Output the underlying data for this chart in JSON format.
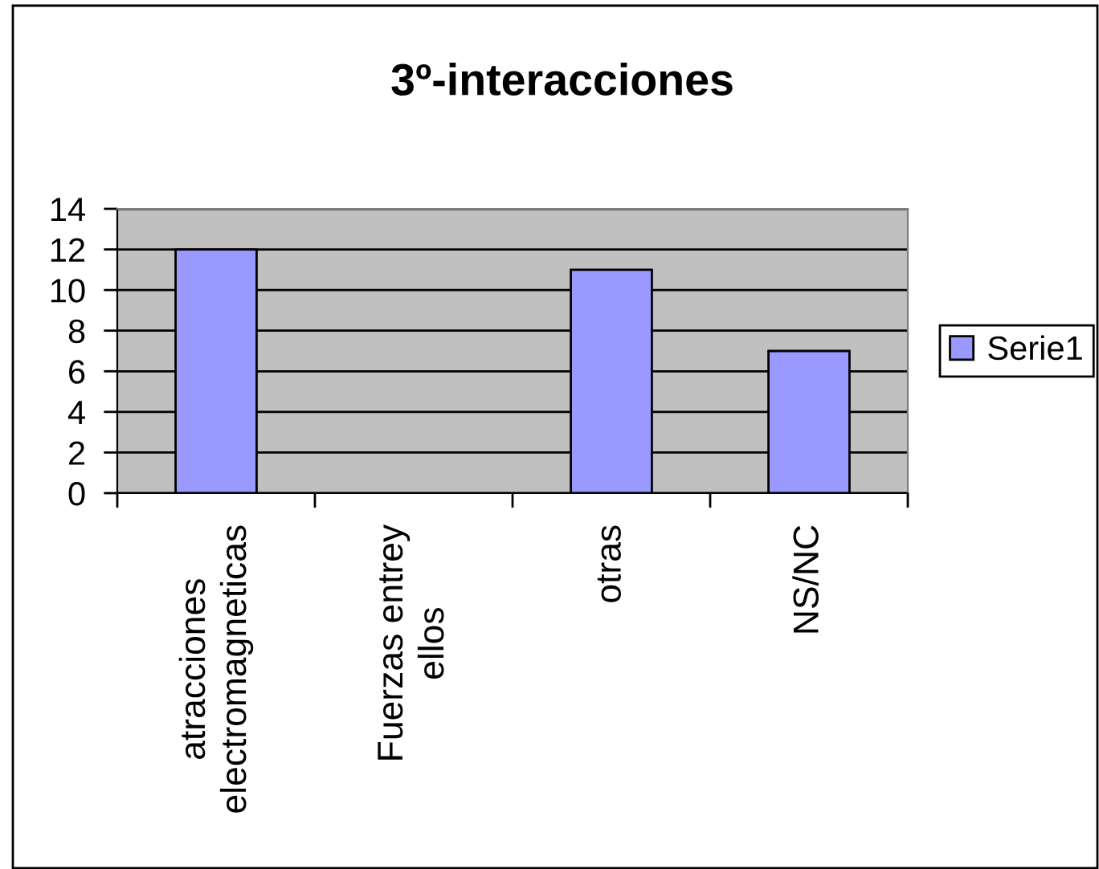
{
  "chart_data": {
    "type": "bar",
    "title": "3º-interacciones",
    "categories": [
      "atracciones\nelectromagneticas",
      "Fuerzas entrey\nellos",
      "otras",
      "NS/NC"
    ],
    "series": [
      {
        "name": "Serie1",
        "color": "#9999ff",
        "values": [
          12,
          null,
          11,
          7
        ]
      }
    ],
    "ylim": [
      0,
      14
    ],
    "yticks": [
      0,
      2,
      4,
      6,
      8,
      10,
      12,
      14
    ],
    "grid": "y",
    "legend": "right"
  }
}
